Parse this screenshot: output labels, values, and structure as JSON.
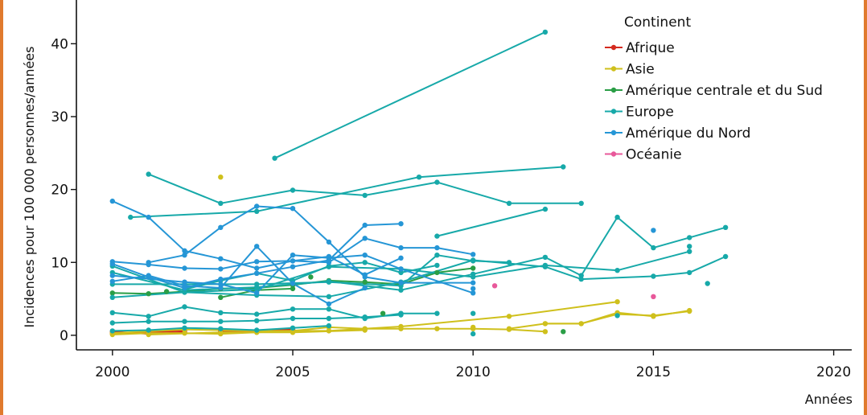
{
  "chart_data": {
    "type": "line",
    "xlabel": "Années",
    "ylabel": "Incidences pour 100 000 personnes/années",
    "xlim": [
      1999,
      2020.5
    ],
    "ylim": [
      -2,
      46
    ],
    "x_ticks": [
      2000,
      2005,
      2010,
      2015,
      2020
    ],
    "y_ticks": [
      0,
      10,
      20,
      30,
      40
    ],
    "grid": false,
    "legend": {
      "title": "Continent",
      "position": "top-right"
    },
    "series": [
      {
        "name": "Afrique",
        "color": "#d42a1e",
        "lines": [
          [
            [
              2000,
              0.3
            ],
            [
              2001,
              0.4
            ],
            [
              2002,
              0.6
            ]
          ],
          [
            [
              2003,
              0.5
            ],
            [
              2004,
              0.6
            ],
            [
              2005,
              0.8
            ]
          ],
          [
            [
              2000,
              0.5
            ],
            [
              2001,
              0.2
            ],
            [
              2002,
              0.4
            ]
          ]
        ],
        "points": []
      },
      {
        "name": "Asie",
        "color": "#cfc01c",
        "lines": [
          [
            [
              2000,
              0.1
            ],
            [
              2001,
              0.3
            ],
            [
              2002,
              0.3
            ],
            [
              2003,
              0.2
            ],
            [
              2004,
              0.4
            ],
            [
              2005,
              0.6
            ],
            [
              2006,
              1.1
            ],
            [
              2007,
              0.9
            ],
            [
              2008,
              0.9
            ],
            [
              2009,
              0.9
            ],
            [
              2010,
              0.9
            ],
            [
              2011,
              0.8
            ],
            [
              2012,
              0.5
            ]
          ],
          [
            [
              2000,
              0.3
            ],
            [
              2002,
              0.8
            ],
            [
              2004,
              0.6
            ],
            [
              2006,
              0.6
            ],
            [
              2008,
              1.2
            ],
            [
              2011,
              2.6
            ],
            [
              2014,
              4.6
            ]
          ],
          [
            [
              2011,
              0.9
            ],
            [
              2012,
              1.6
            ],
            [
              2013,
              1.6
            ],
            [
              2014,
              3.1
            ],
            [
              2015,
              2.6
            ],
            [
              2016,
              3.4
            ]
          ],
          [
            [
              2012,
              1.6
            ],
            [
              2013,
              1.6
            ],
            [
              2014,
              2.9
            ],
            [
              2015,
              2.7
            ],
            [
              2016,
              3.3
            ]
          ],
          [
            [
              2001,
              0.1
            ],
            [
              2003,
              0.4
            ],
            [
              2005,
              0.4
            ],
            [
              2007,
              0.7
            ]
          ]
        ],
        "points": [
          [
            2003,
            21.7
          ],
          [
            2010,
            1.1
          ]
        ]
      },
      {
        "name": "Amérique centrale et du Sud",
        "color": "#2a9e46",
        "lines": [
          [
            [
              2000,
              5.8
            ],
            [
              2001,
              5.7
            ],
            [
              2002,
              6.0
            ],
            [
              2003,
              6.4
            ],
            [
              2004,
              6.5
            ],
            [
              2005,
              6.9
            ],
            [
              2006,
              7.5
            ],
            [
              2007,
              7.3
            ],
            [
              2008,
              7.0
            ],
            [
              2009,
              8.6
            ],
            [
              2010,
              9.2
            ]
          ],
          [
            [
              2003,
              5.2
            ],
            [
              2004,
              6.2
            ],
            [
              2005,
              6.4
            ]
          ]
        ],
        "points": [
          [
            2007.5,
            3.0
          ],
          [
            2012.5,
            0.5
          ],
          [
            2001.5,
            6.0
          ],
          [
            2005.5,
            8.0
          ]
        ]
      },
      {
        "name": "Europe",
        "color": "#17a9a9",
        "lines": [
          [
            [
              2004.5,
              24.3
            ],
            [
              2012,
              41.6
            ]
          ],
          [
            [
              2001,
              22.1
            ],
            [
              2003,
              18.1
            ],
            [
              2005,
              19.9
            ],
            [
              2007,
              19.2
            ],
            [
              2009,
              21.0
            ],
            [
              2011,
              18.1
            ],
            [
              2013,
              18.1
            ]
          ],
          [
            [
              2000.5,
              16.2
            ],
            [
              2004,
              17.0
            ],
            [
              2008.5,
              21.7
            ],
            [
              2012.5,
              23.1
            ]
          ],
          [
            [
              2009,
              13.6
            ],
            [
              2012,
              17.3
            ]
          ],
          [
            [
              2000,
              9.5
            ],
            [
              2002,
              5.9
            ],
            [
              2004,
              5.5
            ],
            [
              2006,
              5.3
            ],
            [
              2008,
              7.3
            ],
            [
              2010,
              10.3
            ],
            [
              2012,
              9.4
            ],
            [
              2013,
              7.7
            ],
            [
              2015,
              8.1
            ],
            [
              2016,
              8.6
            ],
            [
              2017,
              10.8
            ]
          ],
          [
            [
              2000,
              8.6
            ],
            [
              2002,
              6.2
            ],
            [
              2004,
              6.6
            ],
            [
              2006,
              7.4
            ],
            [
              2008,
              6.2
            ],
            [
              2010,
              8.4
            ],
            [
              2012,
              10.7
            ],
            [
              2013,
              8.2
            ],
            [
              2014,
              16.2
            ],
            [
              2015,
              12.0
            ],
            [
              2016,
              13.4
            ],
            [
              2017,
              14.8
            ]
          ],
          [
            [
              2000,
              5.2
            ],
            [
              2002,
              5.9
            ],
            [
              2004,
              6.3
            ],
            [
              2006,
              9.4
            ],
            [
              2008,
              9.1
            ],
            [
              2010,
              8.0
            ],
            [
              2012,
              9.6
            ],
            [
              2014,
              8.9
            ],
            [
              2016,
              11.5
            ]
          ],
          [
            [
              2000,
              7.0
            ],
            [
              2002,
              7.0
            ],
            [
              2004,
              7.0
            ],
            [
              2006,
              7.3
            ],
            [
              2008,
              6.8
            ],
            [
              2009,
              11.0
            ],
            [
              2010,
              10.2
            ],
            [
              2011,
              10.0
            ]
          ],
          [
            [
              2000,
              3.1
            ],
            [
              2001,
              2.6
            ],
            [
              2002,
              3.9
            ],
            [
              2003,
              3.1
            ],
            [
              2004,
              2.9
            ],
            [
              2005,
              3.6
            ],
            [
              2006,
              3.6
            ],
            [
              2007,
              2.3
            ],
            [
              2008,
              3.0
            ],
            [
              2009,
              3.0
            ]
          ],
          [
            [
              2000,
              1.7
            ],
            [
              2001,
              1.9
            ],
            [
              2002,
              1.9
            ],
            [
              2003,
              1.9
            ],
            [
              2004,
              2.0
            ],
            [
              2005,
              2.3
            ],
            [
              2006,
              2.3
            ],
            [
              2007,
              2.5
            ],
            [
              2008,
              2.8
            ]
          ],
          [
            [
              2000,
              0.6
            ],
            [
              2001,
              0.7
            ],
            [
              2002,
              1.0
            ],
            [
              2003,
              0.9
            ],
            [
              2004,
              0.7
            ],
            [
              2005,
              1.0
            ],
            [
              2006,
              1.3
            ]
          ],
          [
            [
              2002,
              6.3
            ],
            [
              2003,
              7.5
            ],
            [
              2004,
              8.5
            ],
            [
              2005,
              7.5
            ],
            [
              2006,
              9.5
            ],
            [
              2007,
              10.0
            ],
            [
              2008,
              8.6
            ],
            [
              2009,
              9.6
            ]
          ]
        ],
        "points": [
          [
            2010,
            0.2
          ],
          [
            2010,
            3.0
          ],
          [
            2014,
            2.7
          ],
          [
            2016,
            12.2
          ],
          [
            2016.5,
            7.1
          ]
        ]
      },
      {
        "name": "Amérique du Nord",
        "color": "#2596d6",
        "lines": [
          [
            [
              2000,
              18.4
            ],
            [
              2001,
              16.2
            ],
            [
              2002,
              11.6
            ],
            [
              2003,
              10.5
            ],
            [
              2004,
              9.2
            ],
            [
              2005,
              10.2
            ],
            [
              2006,
              10.0
            ],
            [
              2007,
              13.3
            ],
            [
              2008,
              12.0
            ],
            [
              2009,
              12.0
            ],
            [
              2010,
              11.1
            ]
          ],
          [
            [
              2001,
              10.0
            ],
            [
              2002,
              11.0
            ],
            [
              2003,
              14.8
            ],
            [
              2004,
              17.7
            ],
            [
              2005,
              17.4
            ],
            [
              2006,
              12.8
            ],
            [
              2007,
              8.0
            ],
            [
              2008,
              7.2
            ],
            [
              2010,
              7.2
            ]
          ],
          [
            [
              2000,
              10.1
            ],
            [
              2001,
              9.7
            ],
            [
              2002,
              9.2
            ],
            [
              2003,
              9.1
            ],
            [
              2004,
              10.1
            ],
            [
              2005,
              10.2
            ],
            [
              2006,
              10.8
            ],
            [
              2007,
              8.3
            ],
            [
              2008,
              10.6
            ]
          ],
          [
            [
              2000,
              7.4
            ],
            [
              2001,
              8.2
            ],
            [
              2002,
              6.8
            ],
            [
              2003,
              6.5
            ],
            [
              2004,
              12.2
            ],
            [
              2005,
              7.1
            ],
            [
              2006,
              4.3
            ],
            [
              2007,
              6.5
            ]
          ],
          [
            [
              2000,
              9.8
            ],
            [
              2001,
              8.0
            ],
            [
              2002,
              6.5
            ],
            [
              2003,
              7.7
            ],
            [
              2004,
              8.5
            ],
            [
              2005,
              9.4
            ],
            [
              2006,
              10.3
            ],
            [
              2007,
              15.1
            ],
            [
              2008,
              15.3
            ]
          ],
          [
            [
              2000,
              8.2
            ],
            [
              2002,
              7.3
            ],
            [
              2003,
              7.0
            ],
            [
              2004,
              5.8
            ],
            [
              2005,
              11.0
            ],
            [
              2006,
              10.6
            ],
            [
              2007,
              11.0
            ],
            [
              2008,
              9.1
            ],
            [
              2010,
              5.8
            ]
          ]
        ],
        "points": [
          [
            2015,
            14.4
          ],
          [
            2010,
            6.4
          ]
        ]
      },
      {
        "name": "Océanie",
        "color": "#e8589a",
        "lines": [],
        "points": [
          [
            2010.6,
            6.8
          ],
          [
            2015,
            5.3
          ]
        ]
      }
    ]
  }
}
